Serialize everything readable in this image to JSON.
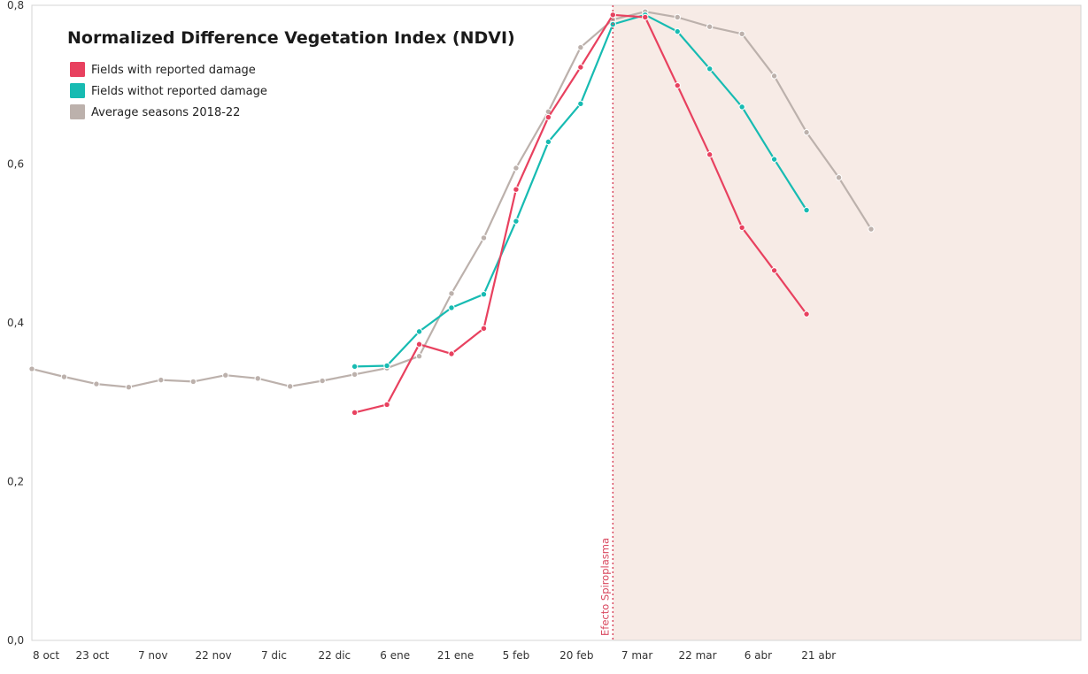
{
  "chart_data": {
    "type": "line",
    "title": "Normalized Difference Vegetation Index (NDVI)",
    "xlabel": "",
    "ylabel": "",
    "ylim": [
      0.0,
      0.8
    ],
    "yticks": [
      0.0,
      0.2,
      0.4,
      0.6,
      0.8
    ],
    "ytick_labels": [
      "0,0",
      "0,2",
      "0,4",
      "0,6",
      "0,8"
    ],
    "x_unit": "days from 8 oct",
    "xlim": [
      0,
      260
    ],
    "xticks": [
      {
        "x": 0,
        "label": "8 oct"
      },
      {
        "x": 15,
        "label": "23 oct"
      },
      {
        "x": 30,
        "label": "7 nov"
      },
      {
        "x": 45,
        "label": "22 nov"
      },
      {
        "x": 60,
        "label": "7 dic"
      },
      {
        "x": 75,
        "label": "22 dic"
      },
      {
        "x": 90,
        "label": "6 ene"
      },
      {
        "x": 105,
        "label": "21 ene"
      },
      {
        "x": 120,
        "label": "5 feb"
      },
      {
        "x": 135,
        "label": "20 feb"
      },
      {
        "x": 150,
        "label": "7 mar"
      },
      {
        "x": 165,
        "label": "22 mar"
      },
      {
        "x": 180,
        "label": "6 abr"
      },
      {
        "x": 195,
        "label": "21 abr"
      }
    ],
    "grid": false,
    "legend_position": "top-left",
    "annotation": {
      "label": "Efecto Spiroplasma",
      "x": 144,
      "shaded_from": 144,
      "shaded_to": 260,
      "shade_color": "#f7ebe6",
      "line_color": "#d9485f"
    },
    "series": [
      {
        "name": "Average seasons 2018-22",
        "color": "#bcb1ac",
        "x": [
          0,
          8,
          16,
          24,
          32,
          40,
          48,
          56,
          64,
          72,
          80,
          88,
          96,
          104,
          112,
          120,
          128,
          136,
          144,
          152,
          160,
          168,
          176,
          184,
          192,
          200,
          208
        ],
        "y": [
          0.342,
          0.332,
          0.323,
          0.319,
          0.328,
          0.326,
          0.334,
          0.33,
          0.32,
          0.327,
          0.335,
          0.343,
          0.358,
          0.437,
          0.507,
          0.595,
          0.666,
          0.747,
          0.782,
          0.792,
          0.785,
          0.773,
          0.764,
          0.711,
          0.64,
          0.583,
          0.518
        ]
      },
      {
        "name": "Fields with reported damage",
        "color": "#e8415f",
        "x": [
          80,
          88,
          96,
          104,
          112,
          120,
          128,
          136,
          144,
          152,
          160,
          168,
          176,
          184,
          192
        ],
        "y": [
          0.287,
          0.297,
          0.373,
          0.361,
          0.393,
          0.568,
          0.659,
          0.722,
          0.788,
          0.785,
          0.699,
          0.612,
          0.52,
          0.466,
          0.411
        ]
      },
      {
        "name": "Fields withot reported damage",
        "color": "#17bbb2",
        "x": [
          80,
          88,
          96,
          104,
          112,
          120,
          128,
          136,
          144,
          152,
          160,
          168,
          176,
          184,
          192
        ],
        "y": [
          0.345,
          0.346,
          0.389,
          0.419,
          0.436,
          0.528,
          0.628,
          0.676,
          0.776,
          0.788,
          0.767,
          0.72,
          0.672,
          0.606,
          0.542
        ]
      }
    ],
    "legend": [
      {
        "label": "Fields with reported damage",
        "color": "#e8415f"
      },
      {
        "label": "Fields withot reported damage",
        "color": "#17bbb2"
      },
      {
        "label": "Average seasons 2018-22",
        "color": "#bcb1ac"
      }
    ]
  }
}
